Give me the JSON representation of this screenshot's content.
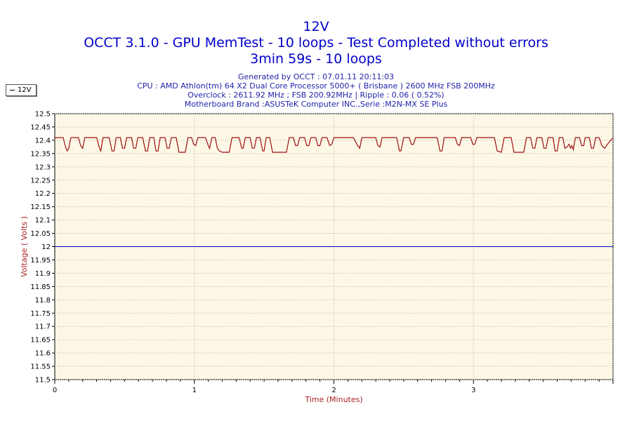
{
  "chart_data": {
    "type": "line",
    "title": "12V",
    "subtitle_lines": [
      "OCCT 3.1.0 - GPU MemTest - 10 loops - Test Completed without errors",
      "3min 59s - 10 loops"
    ],
    "info_lines": [
      "Generated by OCCT : 07.01.11 20:11:03",
      "CPU : AMD Athlon(tm) 64 X2 Dual Core Processor 5000+ ( Brisbane ) 2600 MHz FSB 200MHz",
      "Overclock : 2611.92 MHz ; FSB 200.92MHz | Ripple : 0.06 ( 0.52%)",
      "Motherboard Brand :ASUSTeK Computer INC.,Serie :M2N-MX SE Plus"
    ],
    "xlabel": "Time (Minutes)",
    "ylabel": "Voltage ( Volts )",
    "xlim": [
      0,
      4
    ],
    "ylim": [
      11.5,
      12.5
    ],
    "x_ticks": [
      "0",
      "1",
      "2",
      "3"
    ],
    "y_ticks": [
      "12.5",
      "12.45",
      "12.4",
      "12.35",
      "12.3",
      "12.25",
      "12.2",
      "12.15",
      "12.1",
      "12.05",
      "12",
      "11.95",
      "11.9",
      "11.85",
      "11.8",
      "11.75",
      "11.7",
      "11.65",
      "11.6",
      "11.55",
      "11.5"
    ],
    "reference_line": {
      "y": 12.0,
      "color": "#0000cc"
    },
    "legend": {
      "position": "top-left",
      "entries": [
        "12V"
      ]
    },
    "series": [
      {
        "name": "12V",
        "color": "#a01010",
        "points": [
          [
            0.0,
            12.41
          ],
          [
            0.06,
            12.41
          ],
          [
            0.08,
            12.37
          ],
          [
            0.09,
            12.36
          ],
          [
            0.1,
            12.37
          ],
          [
            0.115,
            12.41
          ],
          [
            0.17,
            12.41
          ],
          [
            0.185,
            12.38
          ],
          [
            0.2,
            12.37
          ],
          [
            0.215,
            12.41
          ],
          [
            0.3,
            12.41
          ],
          [
            0.32,
            12.37
          ],
          [
            0.33,
            12.36
          ],
          [
            0.345,
            12.41
          ],
          [
            0.39,
            12.41
          ],
          [
            0.41,
            12.36
          ],
          [
            0.425,
            12.36
          ],
          [
            0.44,
            12.41
          ],
          [
            0.47,
            12.41
          ],
          [
            0.485,
            12.37
          ],
          [
            0.5,
            12.37
          ],
          [
            0.515,
            12.41
          ],
          [
            0.55,
            12.41
          ],
          [
            0.565,
            12.37
          ],
          [
            0.58,
            12.37
          ],
          [
            0.595,
            12.41
          ],
          [
            0.63,
            12.41
          ],
          [
            0.65,
            12.36
          ],
          [
            0.665,
            12.36
          ],
          [
            0.68,
            12.41
          ],
          [
            0.71,
            12.41
          ],
          [
            0.725,
            12.36
          ],
          [
            0.74,
            12.36
          ],
          [
            0.755,
            12.41
          ],
          [
            0.79,
            12.41
          ],
          [
            0.805,
            12.37
          ],
          [
            0.82,
            12.37
          ],
          [
            0.835,
            12.41
          ],
          [
            0.87,
            12.41
          ],
          [
            0.89,
            12.355
          ],
          [
            0.935,
            12.355
          ],
          [
            0.955,
            12.41
          ],
          [
            0.98,
            12.41
          ],
          [
            0.995,
            12.385
          ],
          [
            1.01,
            12.38
          ],
          [
            1.025,
            12.41
          ],
          [
            1.08,
            12.41
          ],
          [
            1.1,
            12.38
          ],
          [
            1.11,
            12.37
          ],
          [
            1.125,
            12.41
          ],
          [
            1.15,
            12.41
          ],
          [
            1.165,
            12.37
          ],
          [
            1.18,
            12.36
          ],
          [
            1.2,
            12.355
          ],
          [
            1.25,
            12.355
          ],
          [
            1.27,
            12.41
          ],
          [
            1.32,
            12.41
          ],
          [
            1.34,
            12.37
          ],
          [
            1.35,
            12.37
          ],
          [
            1.365,
            12.41
          ],
          [
            1.4,
            12.41
          ],
          [
            1.415,
            12.37
          ],
          [
            1.43,
            12.37
          ],
          [
            1.445,
            12.41
          ],
          [
            1.47,
            12.41
          ],
          [
            1.49,
            12.36
          ],
          [
            1.5,
            12.36
          ],
          [
            1.515,
            12.41
          ],
          [
            1.54,
            12.41
          ],
          [
            1.56,
            12.355
          ],
          [
            1.66,
            12.355
          ],
          [
            1.68,
            12.41
          ],
          [
            1.71,
            12.41
          ],
          [
            1.725,
            12.38
          ],
          [
            1.74,
            12.38
          ],
          [
            1.755,
            12.41
          ],
          [
            1.79,
            12.41
          ],
          [
            1.805,
            12.38
          ],
          [
            1.82,
            12.38
          ],
          [
            1.835,
            12.41
          ],
          [
            1.87,
            12.41
          ],
          [
            1.885,
            12.38
          ],
          [
            1.9,
            12.38
          ],
          [
            1.915,
            12.41
          ],
          [
            1.95,
            12.41
          ],
          [
            1.97,
            12.38
          ],
          [
            1.985,
            12.385
          ],
          [
            2.0,
            12.41
          ],
          [
            2.14,
            12.41
          ],
          [
            2.16,
            12.39
          ],
          [
            2.17,
            12.38
          ],
          [
            2.185,
            12.37
          ],
          [
            2.2,
            12.41
          ],
          [
            2.3,
            12.41
          ],
          [
            2.315,
            12.38
          ],
          [
            2.33,
            12.375
          ],
          [
            2.345,
            12.41
          ],
          [
            2.45,
            12.41
          ],
          [
            2.47,
            12.36
          ],
          [
            2.48,
            12.36
          ],
          [
            2.5,
            12.41
          ],
          [
            2.54,
            12.41
          ],
          [
            2.555,
            12.385
          ],
          [
            2.57,
            12.385
          ],
          [
            2.585,
            12.41
          ],
          [
            2.74,
            12.41
          ],
          [
            2.76,
            12.36
          ],
          [
            2.775,
            12.36
          ],
          [
            2.79,
            12.41
          ],
          [
            2.87,
            12.41
          ],
          [
            2.885,
            12.385
          ],
          [
            2.9,
            12.38
          ],
          [
            2.915,
            12.41
          ],
          [
            2.98,
            12.41
          ],
          [
            2.995,
            12.385
          ],
          [
            3.01,
            12.385
          ],
          [
            3.025,
            12.41
          ],
          [
            3.15,
            12.41
          ],
          [
            3.17,
            12.36
          ],
          [
            3.2,
            12.355
          ],
          [
            3.22,
            12.41
          ],
          [
            3.27,
            12.41
          ],
          [
            3.29,
            12.355
          ],
          [
            3.36,
            12.355
          ],
          [
            3.38,
            12.41
          ],
          [
            3.41,
            12.41
          ],
          [
            3.425,
            12.37
          ],
          [
            3.44,
            12.37
          ],
          [
            3.455,
            12.41
          ],
          [
            3.49,
            12.41
          ],
          [
            3.505,
            12.37
          ],
          [
            3.52,
            12.37
          ],
          [
            3.535,
            12.41
          ],
          [
            3.57,
            12.41
          ],
          [
            3.585,
            12.36
          ],
          [
            3.6,
            12.36
          ],
          [
            3.615,
            12.41
          ],
          [
            3.64,
            12.41
          ],
          [
            3.655,
            12.37
          ],
          [
            3.67,
            12.375
          ],
          [
            3.685,
            12.385
          ],
          [
            3.695,
            12.37
          ],
          [
            3.705,
            12.38
          ],
          [
            3.715,
            12.365
          ],
          [
            3.73,
            12.41
          ],
          [
            3.76,
            12.41
          ],
          [
            3.775,
            12.38
          ],
          [
            3.79,
            12.38
          ],
          [
            3.8,
            12.41
          ],
          [
            3.83,
            12.41
          ],
          [
            3.845,
            12.37
          ],
          [
            3.86,
            12.37
          ],
          [
            3.875,
            12.41
          ],
          [
            3.9,
            12.41
          ],
          [
            3.92,
            12.38
          ],
          [
            3.94,
            12.37
          ],
          [
            3.96,
            12.385
          ],
          [
            4.0,
            12.41
          ]
        ]
      }
    ],
    "grid": true
  }
}
